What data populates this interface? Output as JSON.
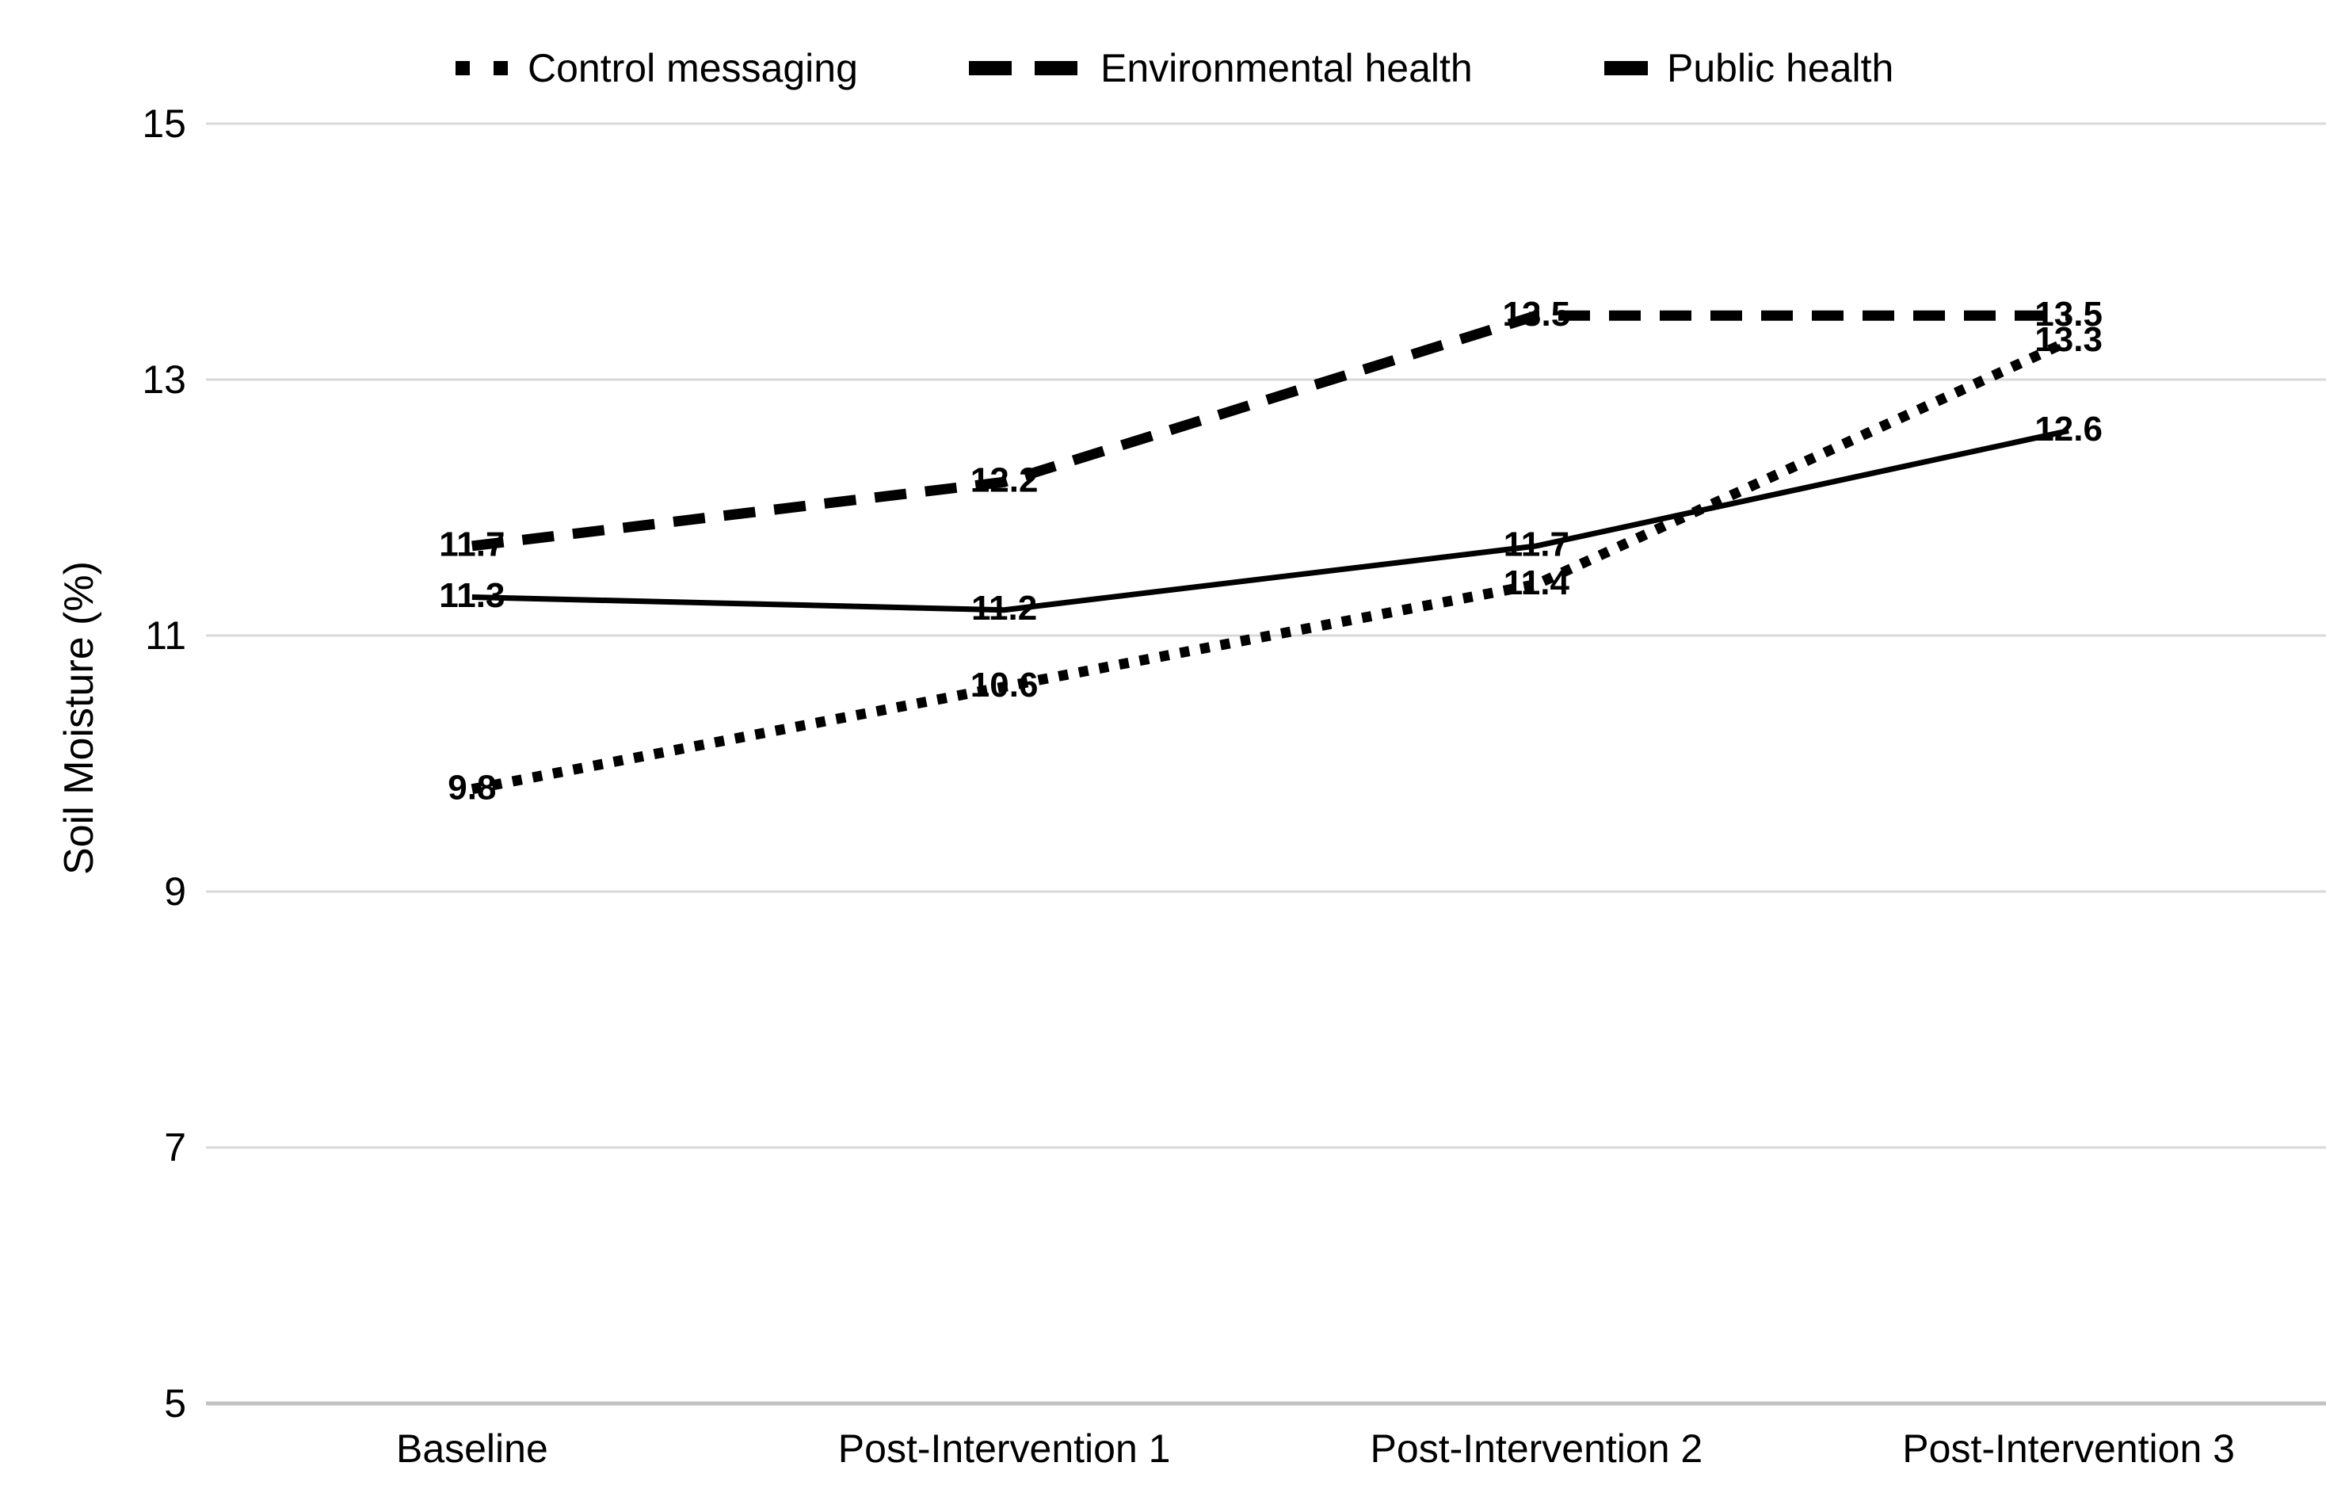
{
  "chart_data": {
    "type": "line",
    "title": "",
    "xlabel": "",
    "ylabel": "Soil Moisture (%)",
    "categories": [
      "Baseline",
      "Post-Intervention 1",
      "Post-Intervention 2",
      "Post-Intervention 3"
    ],
    "series": [
      {
        "name": "Control messaging",
        "line_style": "dotted",
        "values": [
          9.8,
          10.6,
          11.4,
          13.3
        ]
      },
      {
        "name": "Environmental health",
        "line_style": "dashed",
        "values": [
          11.7,
          12.2,
          13.5,
          13.5
        ]
      },
      {
        "name": "Public health",
        "line_style": "solid",
        "values": [
          11.3,
          11.2,
          11.7,
          12.6
        ]
      }
    ],
    "data_labels": [
      [
        "9.8",
        "10.6",
        "11.4",
        "13.3"
      ],
      [
        "11.7",
        "12.2",
        "13.5",
        "13.5"
      ],
      [
        "11.3",
        "11.2",
        "11.7",
        "12.6"
      ]
    ],
    "y_ticks": [
      15,
      13,
      11,
      9,
      7,
      5
    ],
    "ylim": [
      5,
      15
    ],
    "grid": true,
    "legend_position": "top",
    "colors": {
      "series": "#000000",
      "text": "#000000",
      "gridline": "#d9d9d9",
      "axis_line": "#c2c2c2"
    }
  }
}
